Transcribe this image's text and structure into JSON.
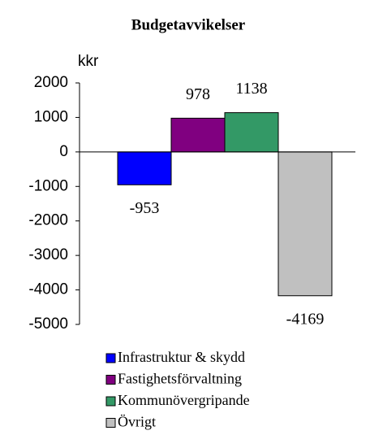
{
  "chart_data": {
    "type": "bar",
    "title": "Budgetavvikelser",
    "y_label": "kkr",
    "series": [
      {
        "name": "Infrastruktur & skydd",
        "color": "#0000ff",
        "values": [
          -953
        ]
      },
      {
        "name": "Fastighetsförvaltning",
        "color": "#800080",
        "values": [
          978
        ]
      },
      {
        "name": "Kommunövergripande",
        "color": "#339966",
        "values": [
          1138
        ]
      },
      {
        "name": "Övrigt",
        "color": "#c0c0c0",
        "values": [
          -4169
        ]
      }
    ],
    "ylim": [
      -5000,
      2000
    ],
    "yticks": [
      2000,
      1000,
      0,
      -1000,
      -2000,
      -3000,
      -4000,
      -5000
    ],
    "legend": "bottom"
  }
}
